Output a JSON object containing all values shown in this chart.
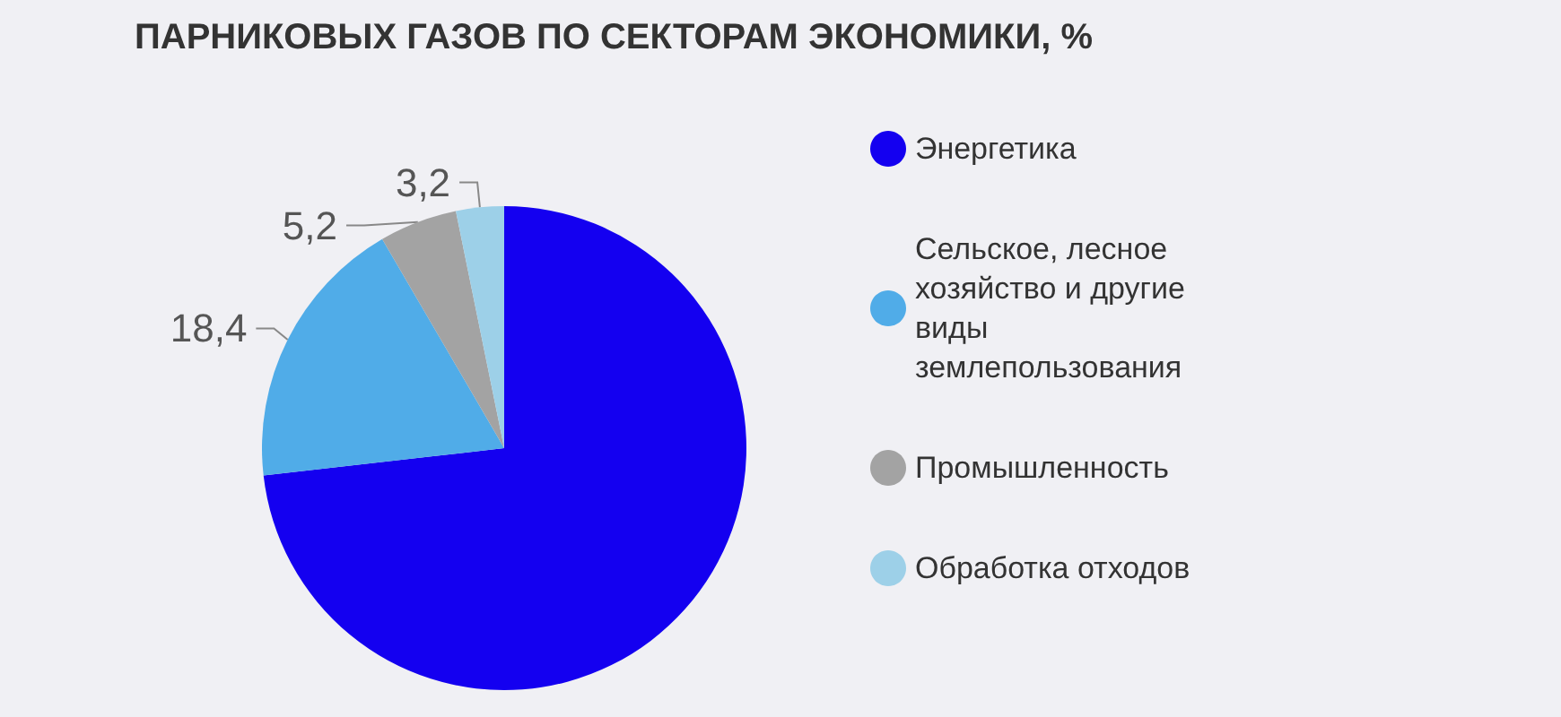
{
  "chart_data": {
    "type": "pie",
    "title": "ПАРНИКОВЫХ ГАЗОВ ПО СЕКТОРАМ ЭКОНОМИКИ, %",
    "categories": [
      "Энергетика",
      "Сельское, лесное хозяйство и другие виды землепользования",
      "Промышленность",
      "Обработка отходов"
    ],
    "values": [
      73.2,
      18.4,
      5.2,
      3.2
    ],
    "value_labels": [
      null,
      "18,4",
      "5,2",
      "3,2"
    ],
    "colors": [
      "#1400f0",
      "#50ace8",
      "#a3a3a3",
      "#9dd0e8"
    ],
    "legend": "right"
  }
}
